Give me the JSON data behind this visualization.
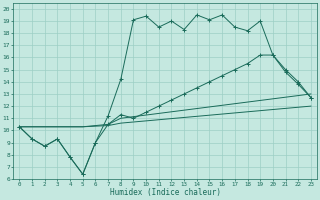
{
  "xlabel": "Humidex (Indice chaleur)",
  "xlim": [
    -0.5,
    23.5
  ],
  "ylim": [
    6,
    20.5
  ],
  "xticks": [
    0,
    1,
    2,
    3,
    4,
    5,
    6,
    7,
    8,
    9,
    10,
    11,
    12,
    13,
    14,
    15,
    16,
    17,
    18,
    19,
    20,
    21,
    22,
    23
  ],
  "yticks": [
    6,
    7,
    8,
    9,
    10,
    11,
    12,
    13,
    14,
    15,
    16,
    17,
    18,
    19,
    20
  ],
  "bg_color": "#c5e8e0",
  "grid_color": "#9dcfc5",
  "line_color": "#1a6b5a",
  "line1_x": [
    0,
    1,
    2,
    3,
    4,
    5,
    6,
    7,
    8,
    9,
    10,
    11,
    12,
    13,
    14,
    15,
    16,
    17,
    18,
    19,
    20,
    21,
    22,
    23
  ],
  "line1_y": [
    10.3,
    9.3,
    8.7,
    9.3,
    7.8,
    6.4,
    9.0,
    11.2,
    14.2,
    19.1,
    19.4,
    18.5,
    19.0,
    18.3,
    19.5,
    19.1,
    19.5,
    18.5,
    18.2,
    19.0,
    16.2,
    15.0,
    14.0,
    12.7
  ],
  "line2_x": [
    0,
    1,
    2,
    3,
    4,
    5,
    6,
    7,
    8,
    9,
    10,
    11,
    12,
    13,
    14,
    15,
    16,
    17,
    18,
    19,
    20,
    21,
    22,
    23
  ],
  "line2_y": [
    10.3,
    9.3,
    8.7,
    9.3,
    7.8,
    6.4,
    9.0,
    10.5,
    11.3,
    11.0,
    11.5,
    12.0,
    12.5,
    13.0,
    13.5,
    14.0,
    14.5,
    15.0,
    15.5,
    16.2,
    16.2,
    14.8,
    13.8,
    12.7
  ],
  "line3_x": [
    0,
    5,
    7,
    8,
    23
  ],
  "line3_y": [
    10.3,
    10.3,
    10.5,
    11.0,
    13.0
  ],
  "line4_x": [
    0,
    5,
    7,
    8,
    23
  ],
  "line4_y": [
    10.3,
    10.3,
    10.4,
    10.6,
    12.0
  ]
}
